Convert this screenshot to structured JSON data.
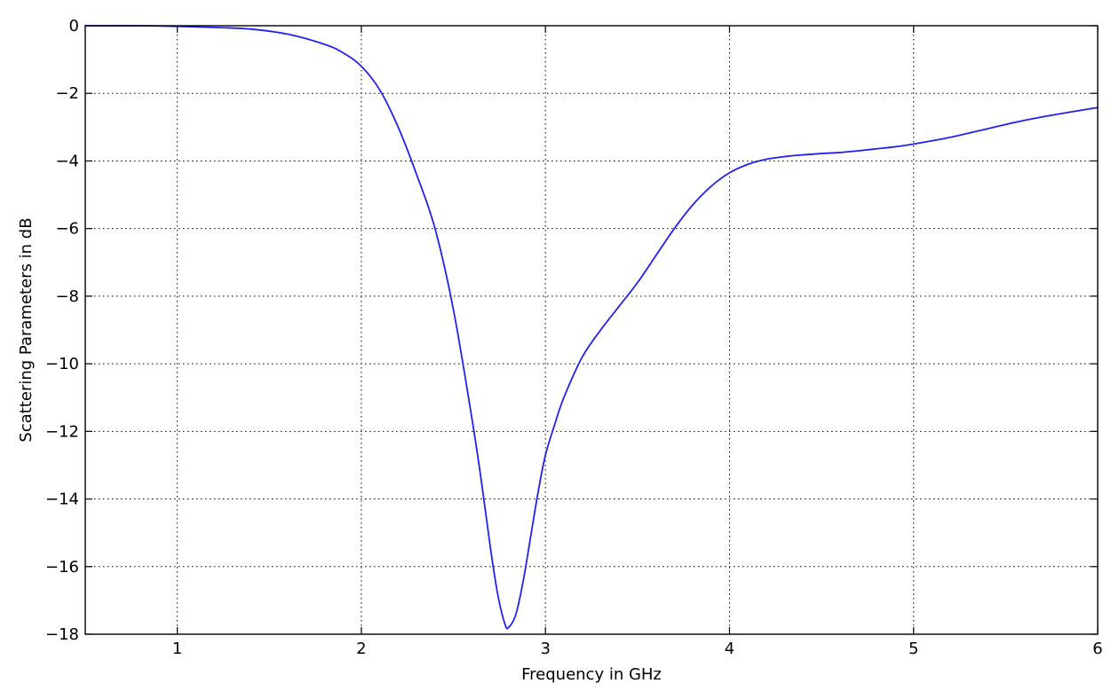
{
  "chart_data": {
    "type": "line",
    "title": "",
    "xlabel": "Frequency in GHz",
    "ylabel": "Scattering Parameters in dB",
    "xlim": [
      0.5,
      6
    ],
    "ylim": [
      -18,
      0
    ],
    "xticks": [
      1,
      2,
      3,
      4,
      5,
      6
    ],
    "xtick_labels": [
      "1",
      "2",
      "3",
      "4",
      "5",
      "6"
    ],
    "yticks": [
      0,
      -2,
      -4,
      -6,
      -8,
      -10,
      -12,
      -14,
      -16,
      -18
    ],
    "ytick_labels": [
      "0",
      "−2",
      "−4",
      "−6",
      "−8",
      "−10",
      "−12",
      "−14",
      "−16",
      "−18"
    ],
    "grid": true,
    "legend": "none",
    "series": [
      {
        "color": "#2222ee",
        "x": [
          0.5,
          0.8,
          1.0,
          1.2,
          1.4,
          1.6,
          1.8,
          1.9,
          2.0,
          2.1,
          2.2,
          2.3,
          2.4,
          2.5,
          2.6,
          2.65,
          2.7,
          2.74,
          2.78,
          2.8,
          2.84,
          2.88,
          2.92,
          2.96,
          3.0,
          3.05,
          3.1,
          3.2,
          3.3,
          3.4,
          3.5,
          3.6,
          3.7,
          3.8,
          3.9,
          4.0,
          4.1,
          4.2,
          4.3,
          4.4,
          4.5,
          4.6,
          4.7,
          4.8,
          4.9,
          5.0,
          5.2,
          5.4,
          5.6,
          5.8,
          6.0
        ],
        "y": [
          0.0,
          0.0,
          -0.02,
          -0.05,
          -0.1,
          -0.25,
          -0.55,
          -0.8,
          -1.2,
          -1.9,
          -3.0,
          -4.4,
          -6.0,
          -8.4,
          -11.6,
          -13.4,
          -15.4,
          -16.8,
          -17.7,
          -17.8,
          -17.4,
          -16.4,
          -15.1,
          -13.8,
          -12.7,
          -11.8,
          -11.0,
          -9.8,
          -9.0,
          -8.3,
          -7.6,
          -6.8,
          -6.0,
          -5.3,
          -4.75,
          -4.35,
          -4.1,
          -3.95,
          -3.87,
          -3.82,
          -3.78,
          -3.75,
          -3.7,
          -3.64,
          -3.58,
          -3.5,
          -3.3,
          -3.05,
          -2.8,
          -2.6,
          -2.42
        ]
      }
    ]
  }
}
